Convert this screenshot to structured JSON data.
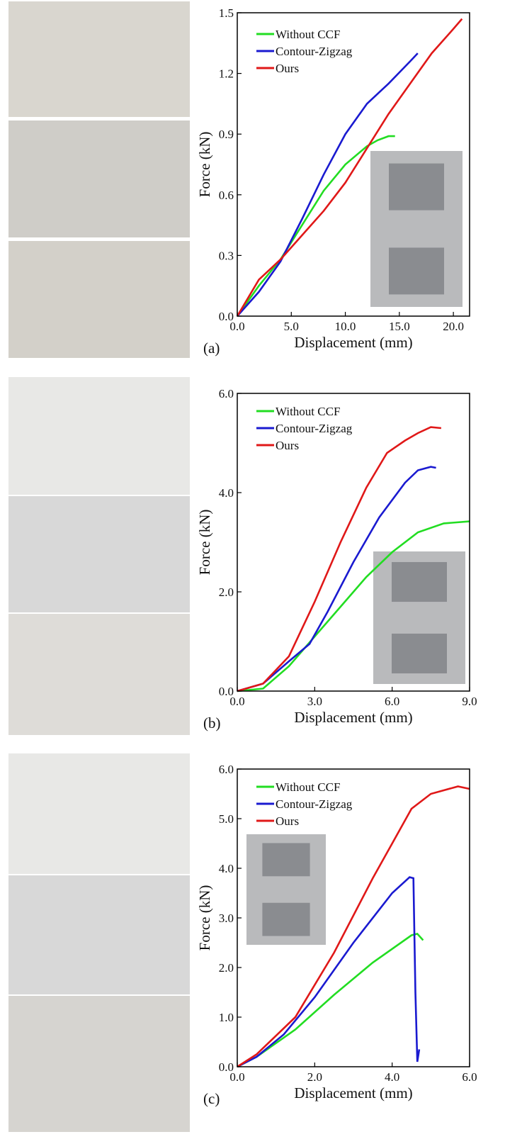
{
  "chart_data": [
    {
      "type": "line",
      "label": "(a)",
      "x_label": "Displacement (mm)",
      "y_label": "Force (kN)",
      "xlim": [
        0,
        21.5
      ],
      "ylim": [
        0,
        1.5
      ],
      "xticks": [
        {
          "value": 0,
          "label": "0.0"
        },
        {
          "value": 5,
          "label": "5.0"
        },
        {
          "value": 10,
          "label": "10.0"
        },
        {
          "value": 15,
          "label": "15.0"
        },
        {
          "value": 20,
          "label": "20.0"
        }
      ],
      "yticks": [
        {
          "value": 0,
          "label": "0.0"
        },
        0.3,
        0.6,
        0.9,
        1.2,
        1.5
      ],
      "series": [
        {
          "name": "Without CCF",
          "color": "#22dd22",
          "x": [
            0,
            2,
            4,
            6,
            8,
            10,
            12,
            13,
            14,
            14.6
          ],
          "values": [
            0,
            0.15,
            0.28,
            0.45,
            0.62,
            0.75,
            0.84,
            0.87,
            0.89,
            0.89
          ]
        },
        {
          "name": "Contour-Zigzag",
          "color": "#1a1ad0",
          "x": [
            0,
            2,
            4,
            6,
            8,
            10,
            12,
            14,
            16,
            16.7
          ],
          "values": [
            0,
            0.12,
            0.27,
            0.48,
            0.7,
            0.9,
            1.05,
            1.15,
            1.26,
            1.3
          ]
        },
        {
          "name": "Ours",
          "color": "#e01818",
          "x": [
            0,
            2,
            4,
            6,
            8,
            10,
            12,
            14,
            16,
            18,
            20,
            20.8
          ],
          "values": [
            0,
            0.18,
            0.28,
            0.4,
            0.52,
            0.66,
            0.83,
            1.0,
            1.15,
            1.3,
            1.42,
            1.47
          ]
        }
      ]
    },
    {
      "type": "line",
      "label": "(b)",
      "x_label": "Displacement (mm)",
      "y_label": "Force (kN)",
      "xlim": [
        0,
        9
      ],
      "ylim": [
        0,
        6
      ],
      "xticks": [
        {
          "value": 0,
          "label": "0.0"
        },
        {
          "value": 3,
          "label": "3.0"
        },
        {
          "value": 6,
          "label": "6.0"
        },
        {
          "value": 9,
          "label": "9.0"
        }
      ],
      "yticks": [
        {
          "value": 0,
          "label": "0.0"
        },
        {
          "value": 2,
          "label": "2.0"
        },
        {
          "value": 4,
          "label": "4.0"
        },
        {
          "value": 6,
          "label": "6.0"
        }
      ],
      "series": [
        {
          "name": "Without CCF",
          "color": "#22dd22",
          "x": [
            0,
            1,
            2,
            3,
            4,
            5,
            6,
            7,
            8,
            9
          ],
          "values": [
            0,
            0.05,
            0.5,
            1.1,
            1.7,
            2.3,
            2.8,
            3.2,
            3.38,
            3.42
          ]
        },
        {
          "name": "Contour-Zigzag",
          "color": "#1a1ad0",
          "x": [
            0,
            1,
            2,
            2.8,
            3.5,
            4.5,
            5.5,
            6.5,
            7,
            7.5,
            7.7
          ],
          "values": [
            0,
            0.15,
            0.6,
            0.95,
            1.6,
            2.6,
            3.5,
            4.2,
            4.45,
            4.52,
            4.5
          ]
        },
        {
          "name": "Ours",
          "color": "#e01818",
          "x": [
            0,
            1,
            2,
            3,
            4,
            5,
            5.8,
            6.5,
            7,
            7.5,
            7.9
          ],
          "values": [
            0,
            0.15,
            0.7,
            1.8,
            3.0,
            4.1,
            4.8,
            5.05,
            5.2,
            5.32,
            5.3
          ]
        }
      ]
    },
    {
      "type": "line",
      "label": "(c)",
      "x_label": "Displacement (mm)",
      "y_label": "Force (kN)",
      "xlim": [
        0,
        6
      ],
      "ylim": [
        0,
        6
      ],
      "xticks": [
        {
          "value": 0,
          "label": "0.0"
        },
        {
          "value": 2,
          "label": "2.0"
        },
        {
          "value": 4,
          "label": "4.0"
        },
        {
          "value": 6,
          "label": "6.0"
        }
      ],
      "yticks": [
        {
          "value": 0,
          "label": "0.0"
        },
        {
          "value": 1,
          "label": "1.0"
        },
        {
          "value": 2,
          "label": "2.0"
        },
        {
          "value": 3,
          "label": "3.0"
        },
        {
          "value": 4,
          "label": "4.0"
        },
        {
          "value": 5,
          "label": "5.0"
        },
        {
          "value": 6,
          "label": "6.0"
        }
      ],
      "series": [
        {
          "name": "Without CCF",
          "color": "#22dd22",
          "x": [
            0,
            0.5,
            1.5,
            2.5,
            3.5,
            4.5,
            4.65,
            4.8
          ],
          "values": [
            0,
            0.2,
            0.75,
            1.45,
            2.1,
            2.65,
            2.68,
            2.55
          ]
        },
        {
          "name": "Contour-Zigzag",
          "color": "#1a1ad0",
          "x": [
            0,
            0.5,
            1.2,
            2,
            3,
            4,
            4.45,
            4.55,
            4.6,
            4.65,
            4.7
          ],
          "values": [
            0,
            0.2,
            0.65,
            1.4,
            2.5,
            3.5,
            3.82,
            3.8,
            1.5,
            0.1,
            0.35
          ]
        },
        {
          "name": "Ours",
          "color": "#e01818",
          "x": [
            0,
            0.5,
            1.5,
            2.5,
            3.5,
            4,
            4.5,
            5,
            5.7,
            6
          ],
          "values": [
            0,
            0.25,
            1.0,
            2.3,
            3.8,
            4.5,
            5.2,
            5.5,
            5.65,
            5.6
          ]
        }
      ]
    }
  ]
}
